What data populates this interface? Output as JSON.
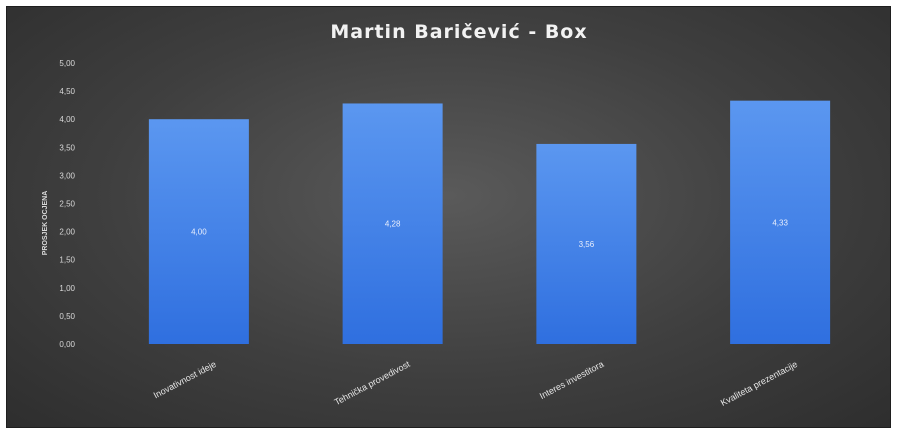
{
  "chart_data": {
    "type": "bar",
    "title": "Martin Baričević - Box",
    "xlabel": "",
    "ylabel": "PROSJEK OCJENA",
    "ylim": [
      0,
      5
    ],
    "yticks": [
      "0,00",
      "0,50",
      "1,00",
      "1,50",
      "2,00",
      "2,50",
      "3,00",
      "3,50",
      "4,00",
      "4,50",
      "5,00"
    ],
    "categories": [
      "Inovativnost ideje",
      "Tehnička provedivost",
      "Interes investitora",
      "Kvaliteta prezentacije"
    ],
    "values": [
      4.0,
      4.28,
      3.56,
      4.33
    ],
    "value_labels": [
      "4,00",
      "4,28",
      "3,56",
      "4,33"
    ],
    "grid": false,
    "legend": "none",
    "colors": {
      "bar": "#3b7be6",
      "bar_light": "#5b97f0",
      "background": "#444444",
      "text": "#e6e6e6"
    }
  }
}
